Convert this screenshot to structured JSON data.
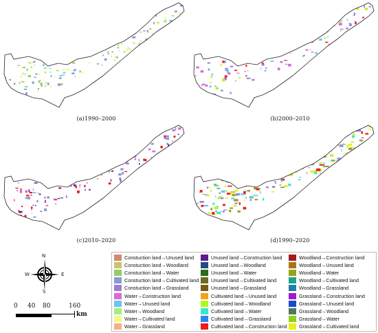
{
  "panels": [
    {
      "label": "(a)1990–2000"
    },
    {
      "label": "(b)2000–2010"
    },
    {
      "label": "(c)2010–2020"
    },
    {
      "label": "(d)1990–2020"
    }
  ],
  "compass": {
    "n": "N",
    "s": "S",
    "e": "E",
    "w": "W",
    "icon": "compass-rose-icon"
  },
  "scale_bar": {
    "ticks": [
      "0",
      "40",
      "80",
      "160"
    ],
    "unit": "km"
  },
  "legend": {
    "columns": [
      [
        {
          "label": "Constuction land→Unused land",
          "color": "#d08a6c"
        },
        {
          "label": "Constuction land→Woodland",
          "color": "#c9c56a"
        },
        {
          "label": "Constuction land→Water",
          "color": "#8fcf63"
        },
        {
          "label": "Constuction land→Cultivated land",
          "color": "#8a9bd4"
        },
        {
          "label": "Constuction land→Grassland",
          "color": "#a57ad6"
        },
        {
          "label": "Water→Construction land",
          "color": "#d86bd8"
        },
        {
          "label": "Water→Unused land",
          "color": "#69c6f5"
        },
        {
          "label": "Water→Woodland",
          "color": "#a5f07a"
        },
        {
          "label": "Water→Cultivated land",
          "color": "#f7f788"
        },
        {
          "label": "Water→Grassland",
          "color": "#f4b187"
        }
      ],
      [
        {
          "label": "Unused land→Construction land",
          "color": "#5a1c8f"
        },
        {
          "label": "Unused land→Woodland",
          "color": "#234b7e"
        },
        {
          "label": "Unused land→Water",
          "color": "#2a6b1c"
        },
        {
          "label": "Unused land→Cultivated land",
          "color": "#6d6a21"
        },
        {
          "label": "Unused land→Grassland",
          "color": "#7a5a1a"
        },
        {
          "label": "Cultivated land→Unused land",
          "color": "#f3a01d"
        },
        {
          "label": "Cultivated land→Woodland",
          "color": "#b3f51f"
        },
        {
          "label": "Cultivated land→Water",
          "color": "#38e8c8"
        },
        {
          "label": "Cultivated land→Grassland",
          "color": "#2d86f0"
        },
        {
          "label": "Cultivated land→Construction land",
          "color": "#f21a1a"
        }
      ],
      [
        {
          "label": "Woodland→Construction land",
          "color": "#a11c1c"
        },
        {
          "label": "Woodland→Unused land",
          "color": "#a8751c"
        },
        {
          "label": "Woodland→Water",
          "color": "#9aa21a"
        },
        {
          "label": "Woodland→Cultivated land",
          "color": "#1ca38f"
        },
        {
          "label": "Woodland→Grassland",
          "color": "#1f7fa1"
        },
        {
          "label": "Grassland→Construction land",
          "color": "#a21ac9"
        },
        {
          "label": "Grassland→Unused land",
          "color": "#1a49d1"
        },
        {
          "label": "Grassland→Woodland",
          "color": "#4f7a5a"
        },
        {
          "label": "Grassland→Water",
          "color": "#8fd11a"
        },
        {
          "label": "Grassland→Cultivated land",
          "color": "#e8f01a"
        }
      ]
    ]
  }
}
